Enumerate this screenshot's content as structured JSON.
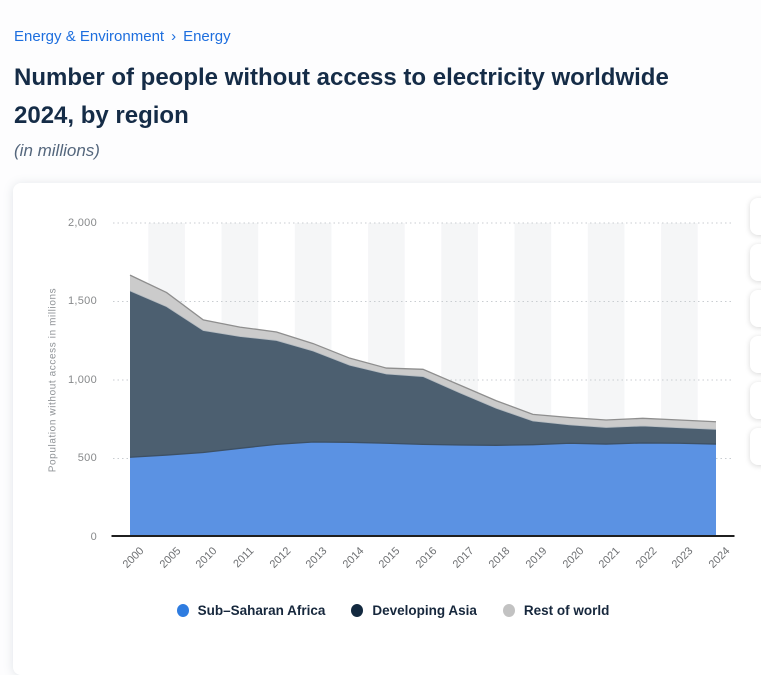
{
  "breadcrumb": {
    "items": [
      {
        "label": "Energy & Environment"
      },
      {
        "label": "Energy"
      }
    ],
    "separator": "›"
  },
  "header": {
    "title_line1": "Number of people without access to electricity worldwide",
    "title_line2": "2024, by region",
    "subtitle": "(in millions)"
  },
  "chart_data": {
    "type": "area",
    "stacked": true,
    "categories": [
      "2000",
      "2005",
      "2010",
      "2011",
      "2012",
      "2013",
      "2014",
      "2015",
      "2016",
      "2017",
      "2018",
      "2019",
      "2020",
      "2021",
      "2022",
      "2023",
      "2024"
    ],
    "series": [
      {
        "name": "Sub–Saharan Africa",
        "legend_color": "#2e7ce0",
        "fill": "#5b92e3",
        "edge": "#3d5064",
        "values": [
          508,
          522,
          538,
          565,
          590,
          605,
          603,
          597,
          590,
          586,
          584,
          588,
          597,
          592,
          599,
          597,
          592
        ]
      },
      {
        "name": "Developing Asia",
        "legend_color": "#13293f",
        "fill": "#4c5f70",
        "edge": "#b5bcc2",
        "values": [
          1060,
          945,
          777,
          712,
          662,
          580,
          491,
          441,
          432,
          333,
          236,
          151,
          117,
          106,
          108,
          99,
          94
        ]
      },
      {
        "name": "Rest of world",
        "legend_color": "#c2c2c2",
        "fill": "#cbcbcb",
        "edge": "#8e8e8e",
        "values": [
          100,
          90,
          68,
          60,
          54,
          47,
          45,
          38,
          46,
          49,
          48,
          42,
          47,
          47,
          49,
          49,
          48
        ]
      }
    ],
    "ylabel": "Population without access in millions",
    "xlabel": "",
    "ylim": [
      0,
      2000
    ],
    "ytick_values": [
      0,
      500,
      1000,
      1500,
      2000
    ],
    "ytick_labels": [
      "0",
      "500",
      "1,000",
      "1,500",
      "2,000"
    ],
    "grid": "horizontal dotted",
    "column_stripes": "alternate",
    "legend_position": "bottom"
  },
  "toolbar": {
    "buttons": [
      {
        "name": "settings"
      },
      {
        "name": "share"
      },
      {
        "name": "download-png"
      },
      {
        "name": "download-pdf"
      },
      {
        "name": "download-xls"
      },
      {
        "name": "download-ppt"
      }
    ]
  }
}
